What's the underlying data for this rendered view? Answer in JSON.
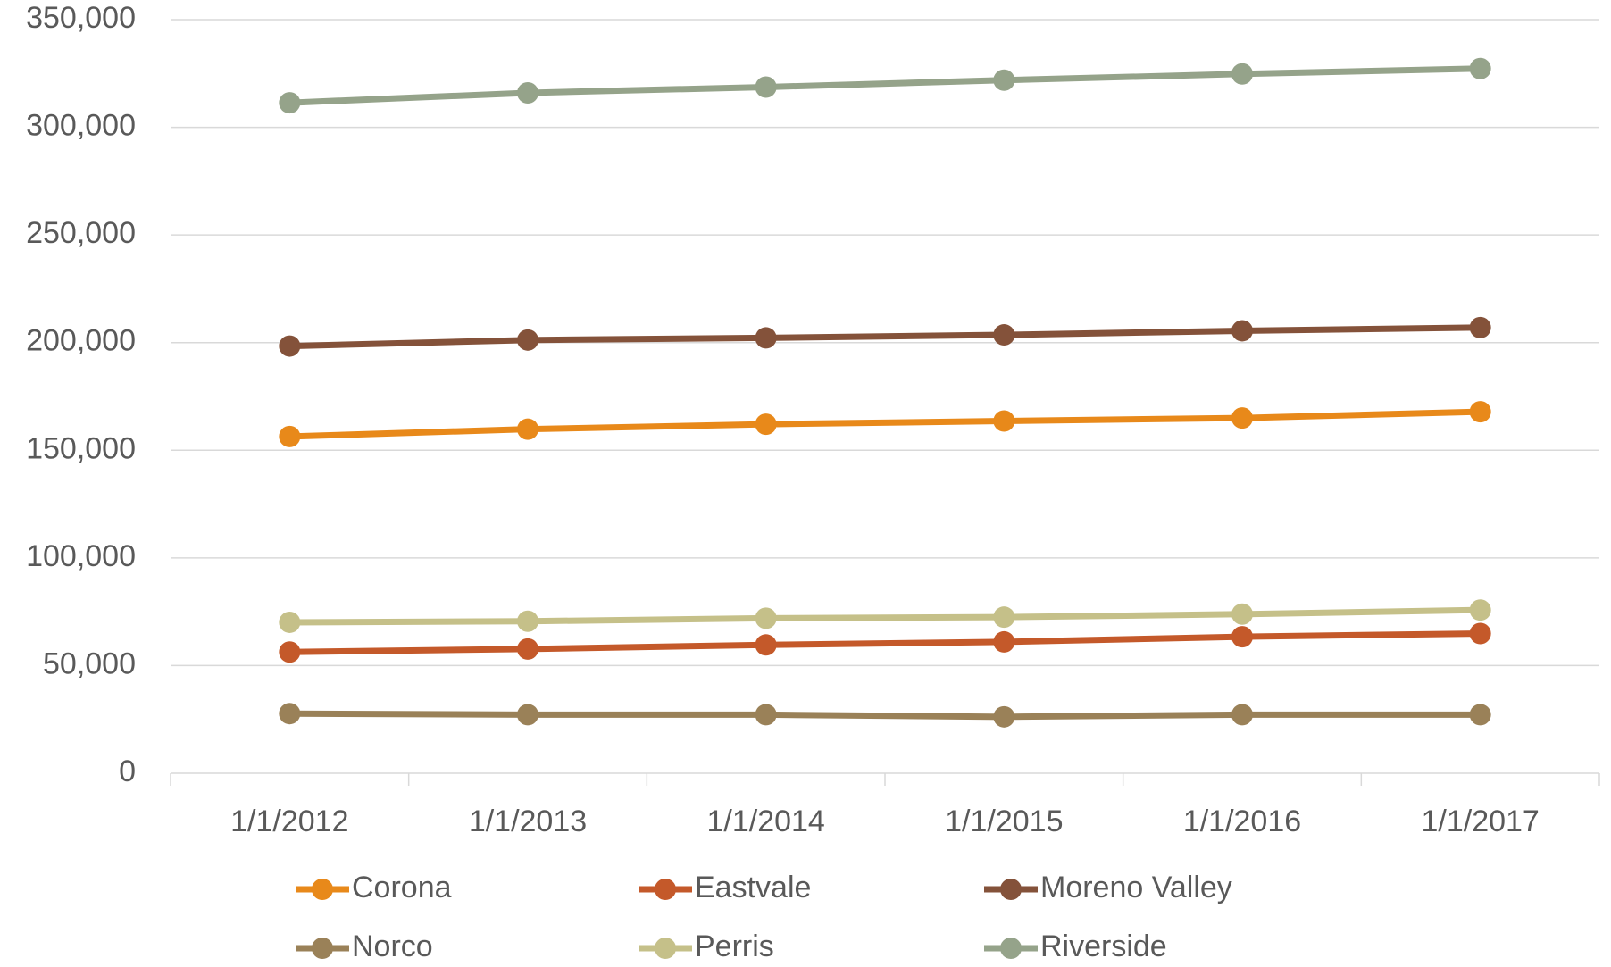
{
  "chart_data": {
    "type": "line",
    "x": [
      "1/1/2012",
      "1/1/2013",
      "1/1/2014",
      "1/1/2015",
      "1/1/2016",
      "1/1/2017"
    ],
    "series": [
      {
        "name": "Corona",
        "color": "#E8891A",
        "values": [
          156400,
          159800,
          162100,
          163600,
          165000,
          167900
        ]
      },
      {
        "name": "Eastvale",
        "color": "#C4592A",
        "values": [
          56300,
          57700,
          59600,
          61000,
          63400,
          64900
        ]
      },
      {
        "name": "Moreno Valley",
        "color": "#84523A",
        "values": [
          198400,
          201200,
          202200,
          203600,
          205500,
          207000
        ]
      },
      {
        "name": "Norco",
        "color": "#9A8158",
        "values": [
          27700,
          27200,
          27200,
          26200,
          27200,
          27200
        ]
      },
      {
        "name": "Perris",
        "color": "#C5C089",
        "values": [
          70100,
          70600,
          72000,
          72500,
          73900,
          75800
        ]
      },
      {
        "name": "Riverside",
        "color": "#95A38A",
        "values": [
          311400,
          316000,
          318700,
          321900,
          324800,
          327300
        ]
      }
    ],
    "ylim": [
      0,
      350000
    ],
    "yticks": [
      0,
      {
        "value": 50000,
        "label": "50,000"
      },
      {
        "value": 100000,
        "label": "100,000"
      },
      {
        "value": 150000,
        "label": "150,000"
      },
      {
        "value": 200000,
        "label": "200,000"
      },
      {
        "value": 250000,
        "label": "250,000"
      },
      {
        "value": 300000,
        "label": "300,000"
      },
      {
        "value": 350000,
        "label": "350,000"
      }
    ],
    "grid": true,
    "legend": "bottom"
  }
}
